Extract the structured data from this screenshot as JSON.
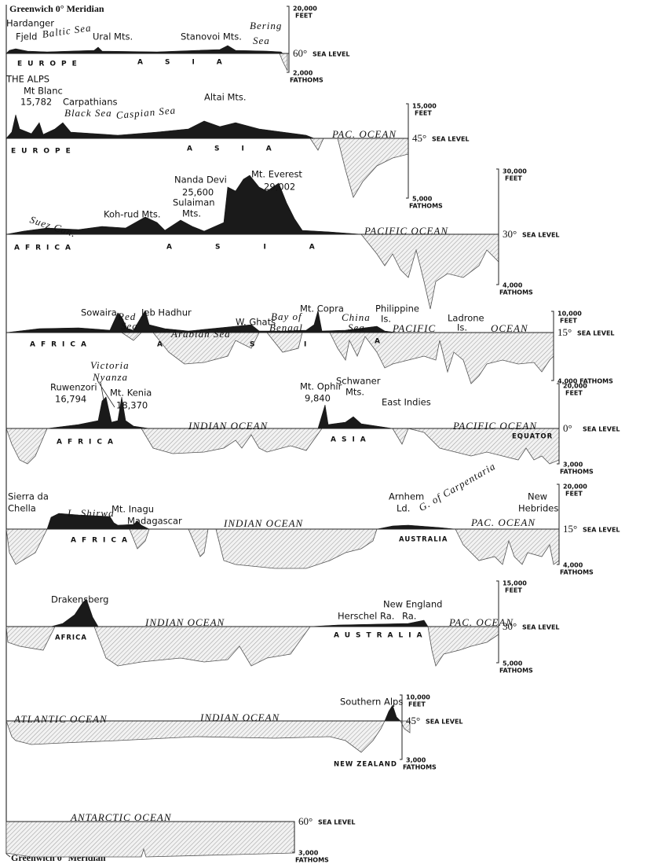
{
  "top_meridian": "Greenwich 0° Meridian",
  "bottom_meridian": "Greenwich 0° Meridian",
  "panels": [
    {
      "labels": [
        "Hardanger",
        "Fjeld",
        "Baltic Sea",
        "Ural Mts.",
        "Stanovoi Mts.",
        "Bering",
        "Sea",
        "EUROPE",
        "ASIA"
      ],
      "scale": {
        "top": "20,000",
        "top_unit": "FEET",
        "latitude": "60°",
        "sea_level": "SEA LEVEL",
        "bottom": "2,000",
        "bottom_unit": "FATHOMS"
      }
    },
    {
      "labels": [
        "THE ALPS",
        "Mt Blanc",
        "15,782",
        "Carpathians",
        "Black Sea",
        "Caspian Sea",
        "Altai Mts.",
        "PAC. OCEAN",
        "EUROPE",
        "ASIA"
      ],
      "scale": {
        "top": "15,000",
        "top_unit": "FEET",
        "latitude": "45°",
        "sea_level": "SEA LEVEL",
        "bottom": "5,000",
        "bottom_unit": "FATHOMS"
      }
    },
    {
      "labels": [
        "Nanda Devi",
        "25,600",
        "Mt. Everest",
        "29,002",
        "Sulaiman",
        "Mts.",
        "Koh-rud Mts.",
        "Suez Can.",
        "PACIFIC OCEAN",
        "AFRICA",
        "ASIA"
      ],
      "scale": {
        "top": "30,000",
        "top_unit": "FEET",
        "latitude": "30°",
        "sea_level": "SEA LEVEL",
        "bottom": "4,000",
        "bottom_unit": "FATHOMS"
      }
    },
    {
      "labels": [
        "Sowaira",
        "Red",
        "Sea",
        "Jeb Hadhur",
        "Arabian Sea",
        "W. Ghats",
        "Bay of",
        "Bengal",
        "Mt. Copra",
        "China",
        "Sea",
        "Philippine",
        "Is.",
        "PACIFIC",
        "Ladrone",
        "Is.",
        "OCEAN",
        "AFRICA",
        "A",
        "S",
        "I",
        "A"
      ],
      "scale": {
        "top": "10,000",
        "top_unit": "FEET",
        "latitude": "15°",
        "sea_level": "SEA LEVEL",
        "bottom": "4,000 FATHOMS"
      }
    },
    {
      "labels": [
        "Victoria",
        "Nyanza",
        "Ruwenzori",
        "16,794",
        "Mt. Kenia",
        "18,370",
        "INDIAN OCEAN",
        "Mt. Ophir",
        "9,840",
        "Schwaner",
        "Mts.",
        "East Indies",
        "PACIFIC OCEAN",
        "EQUATOR",
        "AFRICA",
        "ASIA"
      ],
      "scale": {
        "top": "20,000",
        "top_unit": "FEET",
        "latitude": "0°",
        "sea_level": "SEA LEVEL",
        "bottom": "3,000",
        "bottom_unit": "FATHOMS"
      }
    },
    {
      "labels": [
        "Sierra da",
        "Chella",
        "L. Shirwa",
        "Mt. Inagu",
        "Madagascar",
        "INDIAN OCEAN",
        "Arnhem",
        "Ld.",
        "G. of Carpentaria",
        "New",
        "Hebrides",
        "PAC. OCEAN",
        "AFRICA",
        "AUSTRALIA"
      ],
      "scale": {
        "top": "20,000",
        "top_unit": "FEET",
        "latitude": "15°",
        "sea_level": "SEA LEVEL",
        "bottom": "4,000",
        "bottom_unit": "FATHOMS"
      }
    },
    {
      "labels": [
        "Drakensberg",
        "INDIAN OCEAN",
        "Herschel Ra.",
        "New England",
        "Ra.",
        "PAC. OCEAN",
        "AFRICA",
        "AUSTRALIA"
      ],
      "scale": {
        "top": "15,000",
        "top_unit": "FEET",
        "latitude": "30°",
        "sea_level": "SEA LEVEL",
        "bottom": "5,000",
        "bottom_unit": "FATHOMS"
      }
    },
    {
      "labels": [
        "Southern Alps",
        "ATLANTIC OCEAN",
        "INDIAN OCEAN",
        "NEW ZEALAND"
      ],
      "scale": {
        "top": "10,000",
        "top_unit": "FEET",
        "latitude": "45°",
        "sea_level": "SEA LEVEL",
        "bottom": "3,000",
        "bottom_unit": "FATHOMS"
      }
    },
    {
      "labels": [
        "ANTARCTIC OCEAN"
      ],
      "scale": {
        "latitude": "60°",
        "sea_level": "SEA LEVEL",
        "bottom": "3,000",
        "bottom_unit": "FATHOMS"
      }
    }
  ]
}
